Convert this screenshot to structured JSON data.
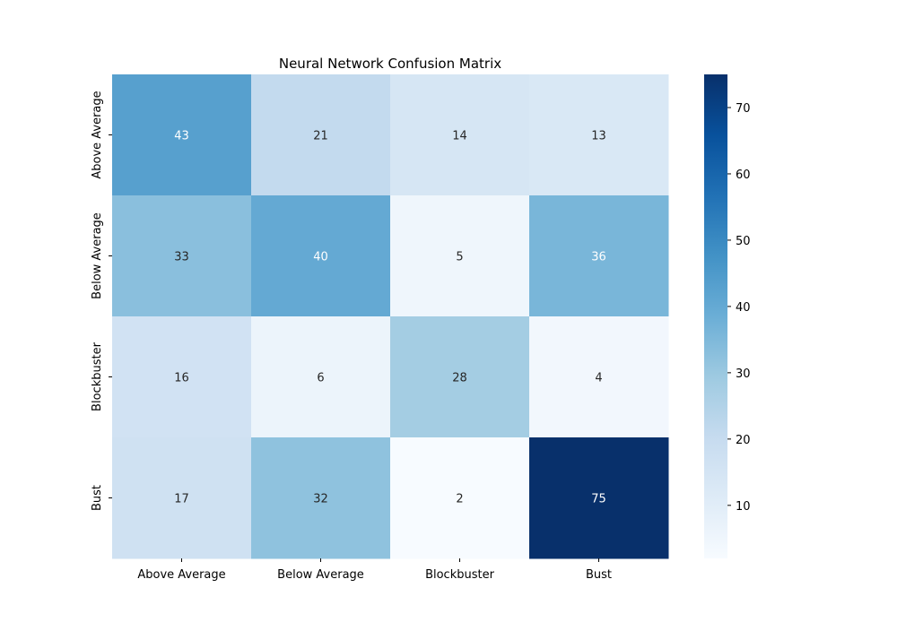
{
  "chart_data": {
    "type": "heatmap",
    "title": "Neural Network Confusion Matrix",
    "xlabel": "",
    "ylabel": "",
    "x_categories": [
      "Above Average",
      "Below Average",
      "Blockbuster",
      "Bust"
    ],
    "y_categories": [
      "Above Average",
      "Below Average",
      "Blockbuster",
      "Bust"
    ],
    "values": [
      [
        43,
        21,
        14,
        13
      ],
      [
        33,
        40,
        5,
        36
      ],
      [
        16,
        6,
        28,
        4
      ],
      [
        17,
        32,
        2,
        75
      ]
    ],
    "colormap": "Blues",
    "color_range": [
      2,
      75
    ],
    "colorbar_ticks": [
      10,
      20,
      30,
      40,
      50,
      60,
      70
    ],
    "annotate_cells": true,
    "text_colors": {
      "light_cell": "#262626",
      "dark_cell": "#ffffff"
    }
  }
}
